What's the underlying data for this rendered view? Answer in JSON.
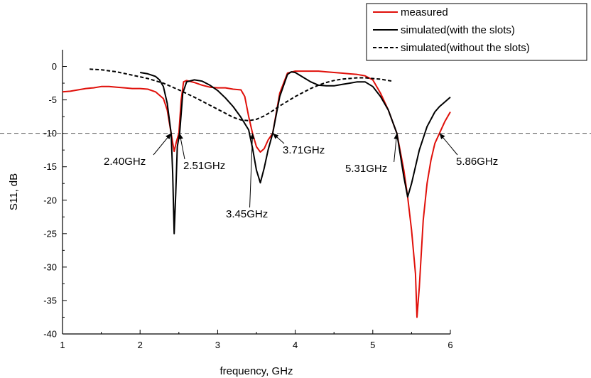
{
  "chart_data": {
    "type": "line",
    "title": "",
    "xlabel": "frequency, GHz",
    "ylabel": "S11, dB",
    "xlim": [
      1,
      6
    ],
    "ylim": [
      -40,
      2.5
    ],
    "xticks": [
      1,
      2,
      3,
      4,
      5,
      6
    ],
    "yticks": [
      0,
      -5,
      -10,
      -15,
      -20,
      -25,
      -30,
      -35,
      -40
    ],
    "grid": false,
    "legend_position": "top-right",
    "reference_line": {
      "y": -10,
      "style": "dashed",
      "color": "#555555"
    },
    "series": [
      {
        "name": "measured",
        "color": "#e0100a",
        "dash": "solid",
        "x": [
          1.0,
          1.1,
          1.2,
          1.3,
          1.4,
          1.5,
          1.6,
          1.7,
          1.8,
          1.9,
          2.0,
          2.1,
          2.2,
          2.3,
          2.35,
          2.4,
          2.44,
          2.47,
          2.5,
          2.53,
          2.56,
          2.6,
          2.7,
          2.8,
          2.9,
          3.0,
          3.1,
          3.2,
          3.3,
          3.35,
          3.4,
          3.45,
          3.5,
          3.55,
          3.6,
          3.65,
          3.71,
          3.8,
          3.9,
          4.0,
          4.1,
          4.2,
          4.3,
          4.4,
          4.5,
          4.6,
          4.7,
          4.8,
          4.9,
          5.0,
          5.1,
          5.2,
          5.31,
          5.4,
          5.45,
          5.5,
          5.55,
          5.57,
          5.6,
          5.65,
          5.7,
          5.75,
          5.8,
          5.86,
          5.93,
          6.0
        ],
        "y": [
          -3.8,
          -3.7,
          -3.5,
          -3.3,
          -3.2,
          -3.0,
          -3.0,
          -3.1,
          -3.2,
          -3.3,
          -3.3,
          -3.4,
          -3.8,
          -4.8,
          -6.5,
          -10.0,
          -12.7,
          -11.2,
          -10.0,
          -5.0,
          -2.3,
          -2.1,
          -2.4,
          -2.8,
          -3.1,
          -3.2,
          -3.2,
          -3.4,
          -3.5,
          -4.5,
          -7.5,
          -10.0,
          -12.0,
          -12.8,
          -12.3,
          -11.0,
          -10.0,
          -4.0,
          -1.0,
          -0.7,
          -0.7,
          -0.7,
          -0.7,
          -0.8,
          -0.9,
          -1.0,
          -1.1,
          -1.2,
          -1.4,
          -2.0,
          -4.0,
          -6.5,
          -10.0,
          -15.5,
          -19.5,
          -24.5,
          -31.0,
          -37.5,
          -33.0,
          -23.0,
          -17.5,
          -14.0,
          -11.5,
          -10.0,
          -8.2,
          -6.8
        ]
      },
      {
        "name": "simulated(with the slots)",
        "color": "#000000",
        "dash": "solid",
        "x": [
          2.0,
          2.1,
          2.2,
          2.25,
          2.3,
          2.35,
          2.4,
          2.42,
          2.44,
          2.46,
          2.48,
          2.51,
          2.55,
          2.6,
          2.7,
          2.8,
          2.9,
          3.0,
          3.1,
          3.2,
          3.3,
          3.4,
          3.45,
          3.5,
          3.55,
          3.6,
          3.65,
          3.71,
          3.8,
          3.9,
          3.95,
          4.0,
          4.1,
          4.2,
          4.3,
          4.4,
          4.5,
          4.6,
          4.7,
          4.8,
          4.9,
          5.0,
          5.1,
          5.2,
          5.31,
          5.4,
          5.45,
          5.5,
          5.6,
          5.7,
          5.8,
          5.86,
          5.9,
          6.0
        ],
        "y": [
          -0.9,
          -1.1,
          -1.5,
          -2.0,
          -3.0,
          -5.5,
          -10.0,
          -16.0,
          -25.0,
          -19.0,
          -12.0,
          -10.0,
          -4.0,
          -2.3,
          -2.0,
          -2.2,
          -2.8,
          -3.6,
          -4.7,
          -6.0,
          -7.6,
          -9.5,
          -12.2,
          -15.5,
          -17.4,
          -15.2,
          -12.5,
          -10.0,
          -4.5,
          -1.2,
          -0.8,
          -0.9,
          -1.6,
          -2.3,
          -2.8,
          -2.9,
          -2.9,
          -2.7,
          -2.5,
          -2.3,
          -2.3,
          -3.0,
          -4.5,
          -6.5,
          -10.0,
          -16.5,
          -19.5,
          -17.5,
          -12.5,
          -9.0,
          -6.8,
          -6.0,
          -5.6,
          -4.6
        ]
      },
      {
        "name": "simulated(without the slots)",
        "color": "#000000",
        "dash": "dashed",
        "x": [
          1.35,
          1.5,
          1.7,
          1.9,
          2.1,
          2.3,
          2.5,
          2.7,
          2.9,
          3.1,
          3.2,
          3.3,
          3.4,
          3.5,
          3.6,
          3.7,
          3.8,
          3.9,
          4.0,
          4.1,
          4.2,
          4.3,
          4.4,
          4.5,
          4.6,
          4.7,
          4.8,
          4.9,
          5.0,
          5.1,
          5.2,
          5.25
        ],
        "y": [
          -0.4,
          -0.5,
          -0.8,
          -1.3,
          -1.8,
          -2.5,
          -3.5,
          -4.6,
          -5.8,
          -7.0,
          -7.6,
          -8.0,
          -8.1,
          -7.9,
          -7.4,
          -6.7,
          -5.9,
          -5.2,
          -4.5,
          -3.9,
          -3.3,
          -2.8,
          -2.4,
          -2.1,
          -1.9,
          -1.8,
          -1.7,
          -1.7,
          -1.8,
          -1.9,
          -2.1,
          -2.2
        ]
      }
    ],
    "annotations": [
      {
        "text": "2.40GHz",
        "point": [
          2.4,
          -10
        ]
      },
      {
        "text": "2.51GHz",
        "point": [
          2.51,
          -10
        ]
      },
      {
        "text": "3.45GHz",
        "point": [
          3.45,
          -10
        ]
      },
      {
        "text": "3.71GHz",
        "point": [
          3.71,
          -10
        ]
      },
      {
        "text": "5.31GHz",
        "point": [
          5.31,
          -10
        ]
      },
      {
        "text": "5.86GHz",
        "point": [
          5.86,
          -10
        ]
      }
    ]
  }
}
